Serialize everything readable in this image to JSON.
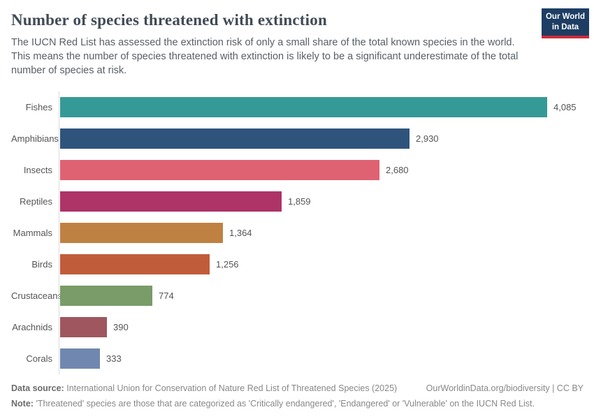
{
  "header": {
    "title": "Number of species threatened with extinction",
    "subtitle": "The IUCN Red List has assessed the extinction risk of only a small share of the total known species in the world. This means the number of species threatened with extinction is likely to be a significant underestimate of the total number of species at risk.",
    "logo": {
      "line1": "Our World",
      "line2": "in Data",
      "bg_color": "#1d3d63",
      "accent_color": "#d0293b"
    }
  },
  "chart_data": {
    "type": "bar",
    "orientation": "horizontal",
    "title": "Number of species threatened with extinction",
    "categories": [
      "Fishes",
      "Amphibians",
      "Insects",
      "Reptiles",
      "Mammals",
      "Birds",
      "Crustaceans",
      "Arachnids",
      "Corals"
    ],
    "values": [
      4085,
      2930,
      2680,
      1859,
      1364,
      1256,
      774,
      390,
      333
    ],
    "value_labels": [
      "4,085",
      "2,930",
      "2,680",
      "1,859",
      "1,364",
      "1,256",
      "774",
      "390",
      "333"
    ],
    "colors": [
      "#359a96",
      "#2f547c",
      "#df6272",
      "#ae3367",
      "#bf8142",
      "#c15c3a",
      "#799c68",
      "#9f565e",
      "#7088af"
    ],
    "xlabel": "",
    "ylabel": "",
    "xlim": [
      0,
      4085
    ],
    "grid": false,
    "legend": false,
    "axis_line_color": "#dadada",
    "label_color": "#555555"
  },
  "footer": {
    "data_source_label": "Data source:",
    "data_source_text": "International Union for Conservation of Nature Red List of Threatened Species (2025)",
    "attribution": "OurWorldinData.org/biodiversity | CC BY",
    "note_label": "Note:",
    "note_text": "'Threatened' species are those that are categorized as 'Critically endangered', 'Endangered' or 'Vulnerable' on the IUCN Red List."
  }
}
